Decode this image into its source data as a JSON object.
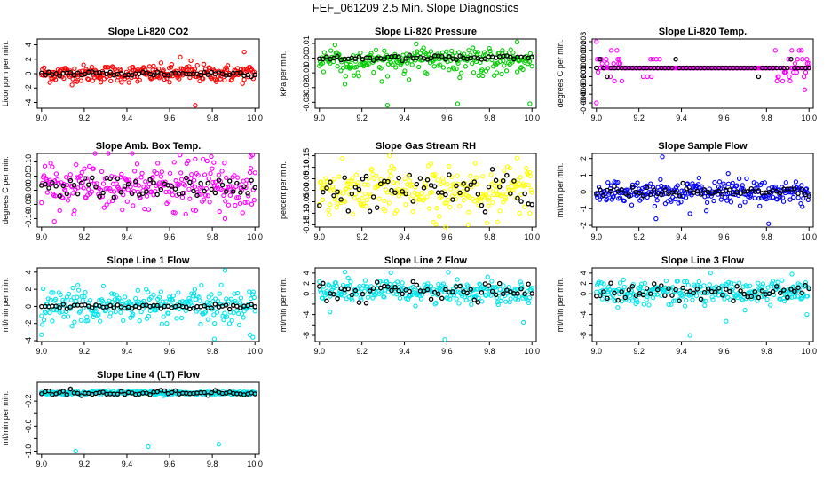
{
  "main_title": "FEF_061209  2.5 Min. Slope Diagnostics",
  "chart_data": [
    {
      "id": "co2",
      "type": "scatter",
      "title": "Slope Li-820 CO2",
      "ylabel": "Licor ppm per min.",
      "color": "#ff0000",
      "xlim": [
        8.98,
        10.02
      ],
      "ylim": [
        -4.8,
        4.8
      ],
      "xticks": [
        9.0,
        9.2,
        9.4,
        9.6,
        9.8,
        10.0
      ],
      "xtick_labels": [
        "9.0",
        "9.2",
        "9.4",
        "9.6",
        "9.8",
        "10.0"
      ],
      "yticks": [
        -4,
        -2,
        0,
        2,
        4
      ],
      "ytick_labels": [
        "-4",
        "-2",
        "0",
        "2",
        "4"
      ],
      "center": 0,
      "spread": 0.6,
      "black_spread": 0.2,
      "outliers": [
        [
          9.72,
          -4.4
        ],
        [
          9.65,
          2.3
        ],
        [
          9.7,
          1.8
        ],
        [
          9.95,
          3.0
        ],
        [
          9.6,
          -1.2
        ],
        [
          9.45,
          -1.1
        ]
      ]
    },
    {
      "id": "pressure",
      "type": "scatter",
      "title": "Slope Li-820 Pressure",
      "ylabel": "kPa per min.",
      "color": "#00cc00",
      "xlim": [
        8.98,
        10.02
      ],
      "ylim": [
        -0.034,
        0.013
      ],
      "xticks": [
        9.0,
        9.2,
        9.4,
        9.6,
        9.8,
        10.0
      ],
      "xtick_labels": [
        "9.0",
        "9.2",
        "9.4",
        "9.6",
        "9.8",
        "10.0"
      ],
      "yticks": [
        -0.03,
        -0.02,
        -0.01,
        0,
        0.01
      ],
      "ytick_labels": [
        "-0.03",
        "-0.02",
        "-0.01",
        "0.00",
        "0.01"
      ],
      "center": 0,
      "spread": 0.003,
      "black_spread": 0.001,
      "skew": -0.004,
      "outliers": [
        [
          9.32,
          -0.032
        ],
        [
          9.65,
          -0.031
        ],
        [
          9.99,
          -0.031
        ],
        [
          9.93,
          0.011
        ]
      ]
    },
    {
      "id": "temp",
      "type": "scatter",
      "title": "Slope Li-820 Temp.",
      "ylabel": "degrees C per min.",
      "color": "#ff00ff",
      "xlim": [
        8.98,
        10.02
      ],
      "ylim": [
        -0.0046,
        0.0033
      ],
      "xticks": [
        9.0,
        9.2,
        9.4,
        9.6,
        9.8,
        10.0
      ],
      "xtick_labels": [
        "9.0",
        "9.2",
        "9.4",
        "9.6",
        "9.8",
        "10.0"
      ],
      "yticks": [
        -0.004,
        -0.003,
        -0.002,
        -0.001,
        0,
        0.001,
        0.002,
        0.003
      ],
      "ytick_labels": [
        "-0.004",
        "-0.003",
        "-0.002",
        "-0.001",
        "0.000",
        "0.001",
        "0.002",
        "0.003"
      ],
      "center": 0,
      "spread": 0.0,
      "black_spread": 0.0,
      "outliers": [
        [
          9.0,
          0.003
        ],
        [
          9.0,
          -0.004
        ],
        [
          9.98,
          -0.0025
        ],
        [
          9.99,
          0.001
        ]
      ]
    },
    {
      "id": "ambbox",
      "type": "scatter",
      "title": "Slope Amb. Box Temp.",
      "ylabel": "degrees C per min.",
      "color": "#ff00ff",
      "xlim": [
        8.98,
        10.02
      ],
      "ylim": [
        -0.13,
        0.13
      ],
      "xticks": [
        9.0,
        9.2,
        9.4,
        9.6,
        9.8,
        10.0
      ],
      "xtick_labels": [
        "9.0",
        "9.2",
        "9.4",
        "9.6",
        "9.8",
        "10.0"
      ],
      "yticks": [
        -0.1,
        -0.05,
        0,
        0.05,
        0.1
      ],
      "ytick_labels": [
        "-0.10",
        "-0.05",
        "0.00",
        "0.05",
        "0.10"
      ],
      "center": 0.01,
      "spread": 0.045,
      "black_spread": 0.02,
      "outliers": [
        [
          9.72,
          0.11
        ],
        [
          9.98,
          0.12
        ],
        [
          9.06,
          -0.11
        ],
        [
          9.86,
          -0.1
        ]
      ]
    },
    {
      "id": "rh",
      "type": "scatter",
      "title": "Slope Gas Stream RH",
      "ylabel": "percent per min.",
      "color": "#ffff00",
      "xlim": [
        8.98,
        10.02
      ],
      "ylim": [
        -0.16,
        0.16
      ],
      "xticks": [
        9.0,
        9.2,
        9.4,
        9.6,
        9.8,
        10.0
      ],
      "xtick_labels": [
        "9.0",
        "9.2",
        "9.4",
        "9.6",
        "9.8",
        "10.0"
      ],
      "yticks": [
        -0.15,
        -0.1,
        -0.05,
        0,
        0.05,
        0.1,
        0.15
      ],
      "ytick_labels": [
        "-0.15",
        "-0.10",
        "-0.05",
        "0.00",
        "0.05",
        "0.10",
        "0.15"
      ],
      "center": 0,
      "spread": 0.05,
      "black_spread": 0.05,
      "outliers": [
        [
          9.33,
          0.15
        ],
        [
          9.93,
          0.14
        ],
        [
          9.99,
          -0.1
        ],
        [
          9.7,
          -0.15
        ]
      ]
    },
    {
      "id": "sampleflow",
      "type": "scatter",
      "title": "Slope Sample Flow",
      "ylabel": "ml/min per min.",
      "color": "#0000ff",
      "xlim": [
        8.98,
        10.02
      ],
      "ylim": [
        -2.1,
        2.3
      ],
      "xticks": [
        9.0,
        9.2,
        9.4,
        9.6,
        9.8,
        10.0
      ],
      "xtick_labels": [
        "9.0",
        "9.2",
        "9.4",
        "9.6",
        "9.8",
        "10.0"
      ],
      "yticks": [
        -2,
        -1,
        0,
        1,
        2
      ],
      "ytick_labels": [
        "-2",
        "-1",
        "0",
        "1",
        "2"
      ],
      "center": 0,
      "spread": 0.35,
      "black_spread": 0.15,
      "outliers": [
        [
          9.31,
          2.1
        ],
        [
          9.28,
          -1.6
        ],
        [
          9.81,
          -1.9
        ],
        [
          9.44,
          -1.3
        ],
        [
          9.62,
          1.1
        ]
      ]
    },
    {
      "id": "line1",
      "type": "scatter",
      "title": "Slope Line 1 Flow",
      "ylabel": "ml/min per min.",
      "color": "#00e5ee",
      "xlim": [
        8.98,
        10.02
      ],
      "ylim": [
        -4.1,
        4.5
      ],
      "xticks": [
        9.0,
        9.2,
        9.4,
        9.6,
        9.8,
        10.0
      ],
      "xtick_labels": [
        "9.0",
        "9.2",
        "9.4",
        "9.6",
        "9.8",
        "10.0"
      ],
      "yticks": [
        -4,
        -2,
        0,
        2,
        4
      ],
      "ytick_labels": [
        "-4",
        "-2",
        "0",
        "2",
        "4"
      ],
      "center": 0,
      "spread": 1.0,
      "black_spread": 0.15,
      "outliers": [
        [
          9.81,
          -3.8
        ],
        [
          9.99,
          -3.6
        ],
        [
          9.86,
          4.2
        ],
        [
          9.0,
          -3.3
        ]
      ]
    },
    {
      "id": "line2",
      "type": "scatter",
      "title": "Slope Line 2 Flow",
      "ylabel": "ml/min per min.",
      "color": "#00e5ee",
      "xlim": [
        8.98,
        10.02
      ],
      "ylim": [
        -9.2,
        5.0
      ],
      "xticks": [
        9.0,
        9.2,
        9.4,
        9.6,
        9.8,
        10.0
      ],
      "xtick_labels": [
        "9.0",
        "9.2",
        "9.4",
        "9.6",
        "9.8",
        "10.0"
      ],
      "yticks": [
        -8,
        -6,
        -4,
        -2,
        0,
        2,
        4
      ],
      "ytick_labels": [
        "-8",
        "",
        "-4",
        "",
        "0",
        "2",
        "4"
      ],
      "center": 0.5,
      "spread": 1.1,
      "black_spread": 0.9,
      "outliers": [
        [
          9.59,
          -8.8
        ],
        [
          9.12,
          4.2
        ],
        [
          9.96,
          -5.5
        ],
        [
          9.05,
          -3.5
        ]
      ]
    },
    {
      "id": "line3",
      "type": "scatter",
      "title": "Slope Line 3 Flow",
      "ylabel": "ml/min per min.",
      "color": "#00e5ee",
      "xlim": [
        8.98,
        10.02
      ],
      "ylim": [
        -9.2,
        5.0
      ],
      "xticks": [
        9.0,
        9.2,
        9.4,
        9.6,
        9.8,
        10.0
      ],
      "xtick_labels": [
        "9.0",
        "9.2",
        "9.4",
        "9.6",
        "9.8",
        "10.0"
      ],
      "yticks": [
        -8,
        -6,
        -4,
        -2,
        0,
        2,
        4
      ],
      "ytick_labels": [
        "-8",
        "",
        "-4",
        "",
        "0",
        "2",
        "4"
      ],
      "center": 0.3,
      "spread": 1.1,
      "black_spread": 0.9,
      "outliers": [
        [
          9.44,
          -8.0
        ],
        [
          9.61,
          -5.3
        ],
        [
          9.99,
          -4.0
        ],
        [
          9.92,
          3.8
        ]
      ]
    },
    {
      "id": "line4",
      "type": "scatter",
      "title": "Slope Line 4 (LT) Flow",
      "ylabel": "ml/min per min.",
      "color": "#00e5ee",
      "xlim": [
        8.98,
        10.02
      ],
      "ylim": [
        -1.05,
        0.1
      ],
      "xticks": [
        9.0,
        9.2,
        9.4,
        9.6,
        9.8,
        10.0
      ],
      "xtick_labels": [
        "9.0",
        "9.2",
        "9.4",
        "9.6",
        "9.8",
        "10.0"
      ],
      "yticks": [
        -1.0,
        -0.8,
        -0.6,
        -0.4,
        -0.2
      ],
      "ytick_labels": [
        "-1.0",
        "",
        "-0.6",
        "",
        "-0.2"
      ],
      "center": -0.07,
      "spread": 0.015,
      "black_spread": 0.02,
      "outliers": [
        [
          9.16,
          -1.0
        ],
        [
          9.5,
          -0.93
        ],
        [
          9.83,
          -0.89
        ],
        [
          9.1,
          -0.1
        ]
      ]
    }
  ]
}
